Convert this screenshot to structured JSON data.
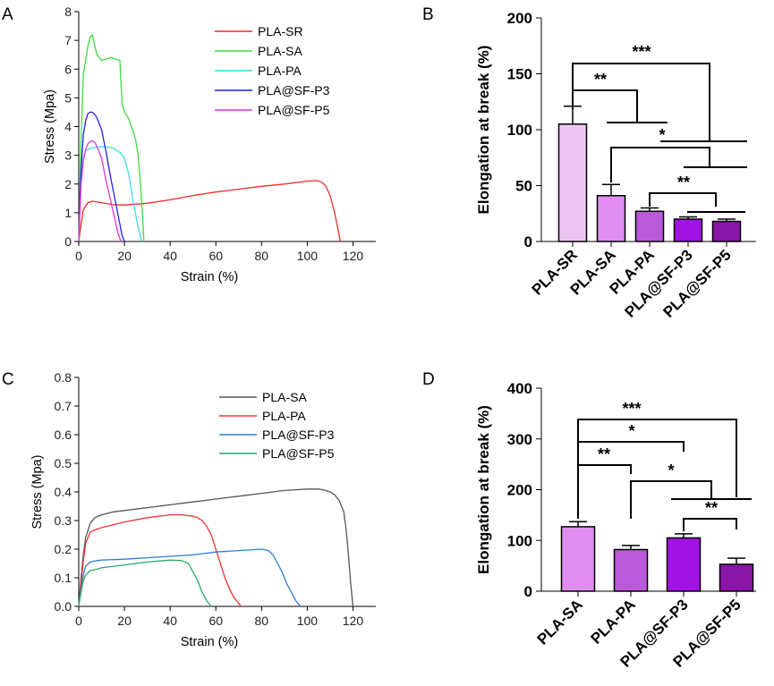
{
  "chart_data": [
    {
      "panel": "A",
      "type": "line",
      "xlabel": "Strain (%)",
      "ylabel": "Stress (Mpa)",
      "xlim": [
        0,
        130
      ],
      "ylim": [
        0,
        8
      ],
      "xticks": [
        0,
        20,
        40,
        60,
        80,
        100,
        120
      ],
      "yticks": [
        0,
        1,
        2,
        3,
        4,
        5,
        6,
        7,
        8
      ],
      "legend_position": "top-right",
      "series": [
        {
          "name": "PLA-SR",
          "color": "#ee2a2a",
          "x": [
            0,
            1,
            2,
            4,
            6,
            10,
            15,
            20,
            30,
            40,
            50,
            60,
            70,
            80,
            90,
            100,
            104,
            106,
            108,
            110,
            112,
            113,
            114,
            114.5
          ],
          "y": [
            0,
            0.6,
            1.1,
            1.35,
            1.4,
            1.35,
            1.28,
            1.27,
            1.33,
            1.45,
            1.6,
            1.72,
            1.82,
            1.92,
            2.0,
            2.1,
            2.12,
            2.08,
            1.95,
            1.6,
            1.0,
            0.6,
            0.2,
            0
          ]
        },
        {
          "name": "PLA-SA",
          "color": "#3ddc3d",
          "x": [
            0,
            1,
            2,
            3,
            4,
            5,
            6,
            7,
            8,
            9,
            10,
            12,
            14,
            16,
            18,
            18.5,
            19,
            20,
            21,
            22,
            23,
            24,
            25,
            26,
            27,
            28,
            28.5
          ],
          "y": [
            0,
            3.5,
            5.8,
            6.3,
            6.8,
            7.1,
            7.2,
            6.8,
            6.5,
            6.4,
            6.3,
            6.35,
            6.4,
            6.35,
            6.3,
            5.5,
            4.8,
            4.5,
            4.4,
            4.25,
            4.0,
            3.8,
            3.5,
            3.0,
            2.0,
            0.8,
            0
          ]
        },
        {
          "name": "PLA-PA",
          "color": "#38e0e0",
          "x": [
            0,
            1,
            2,
            3,
            5,
            8,
            10,
            12,
            15,
            18,
            20,
            22,
            23,
            24,
            25,
            26,
            27,
            27.5
          ],
          "y": [
            0,
            2.2,
            2.9,
            3.15,
            3.25,
            3.28,
            3.3,
            3.3,
            3.25,
            3.1,
            2.9,
            2.3,
            1.8,
            1.3,
            0.9,
            0.5,
            0.15,
            0
          ]
        },
        {
          "name": "PLA@SF-P3",
          "color": "#2222ee",
          "x": [
            0,
            1,
            2,
            3,
            4,
            5,
            6,
            7,
            8,
            10,
            12,
            14,
            16,
            18,
            19,
            20
          ],
          "y": [
            0,
            2.5,
            3.7,
            4.2,
            4.45,
            4.5,
            4.5,
            4.42,
            4.3,
            3.9,
            3.1,
            2.2,
            1.4,
            0.6,
            0.2,
            0
          ]
        },
        {
          "name": "PLA@SF-P5",
          "color": "#e233d6",
          "x": [
            0,
            1,
            2,
            3,
            4,
            5,
            6,
            7,
            8,
            10,
            12,
            14,
            16,
            17,
            18,
            18.5
          ],
          "y": [
            0,
            2.0,
            2.8,
            3.2,
            3.4,
            3.48,
            3.5,
            3.45,
            3.3,
            2.9,
            2.1,
            1.4,
            0.7,
            0.35,
            0.1,
            0
          ]
        }
      ]
    },
    {
      "panel": "B",
      "type": "bar",
      "ylabel": "Elongation at break (%)",
      "ylim": [
        0,
        200
      ],
      "yticks": [
        0,
        50,
        100,
        150,
        200
      ],
      "categories": [
        "PLA-SR",
        "PLA-SA",
        "PLA-PA",
        "PLA@SF-P3",
        "PLA@SF-P5"
      ],
      "values": [
        105,
        41,
        27,
        20,
        18
      ],
      "errors": [
        16,
        10,
        3,
        2,
        2
      ],
      "colors": [
        "#ecc6f3",
        "#df8ef0",
        "#b95ad8",
        "#a113e2",
        "#8a16a8"
      ],
      "significance": [
        {
          "label": "***"
        },
        {
          "label": "**"
        },
        {
          "label": "*"
        },
        {
          "label": "**"
        }
      ]
    },
    {
      "panel": "C",
      "type": "line",
      "xlabel": "Strain (%)",
      "ylabel": "Stress (Mpa)",
      "xlim": [
        0,
        130
      ],
      "ylim": [
        0,
        0.8
      ],
      "xticks": [
        0,
        20,
        40,
        60,
        80,
        100,
        120
      ],
      "yticks": [
        "0.0",
        "0.1",
        "0.2",
        "0.3",
        "0.4",
        "0.5",
        "0.6",
        "0.7",
        "0.8"
      ],
      "legend_position": "top-right",
      "series": [
        {
          "name": "PLA-SA",
          "color": "#555555",
          "x": [
            0,
            1,
            2,
            3,
            5,
            7,
            10,
            15,
            20,
            30,
            40,
            50,
            60,
            70,
            80,
            90,
            100,
            105,
            108,
            110,
            112,
            114,
            116,
            117,
            118,
            119,
            120
          ],
          "y": [
            0,
            0.1,
            0.18,
            0.24,
            0.29,
            0.31,
            0.32,
            0.33,
            0.335,
            0.345,
            0.355,
            0.365,
            0.375,
            0.385,
            0.395,
            0.405,
            0.41,
            0.41,
            0.405,
            0.4,
            0.39,
            0.37,
            0.33,
            0.27,
            0.18,
            0.08,
            0
          ]
        },
        {
          "name": "PLA-PA",
          "color": "#ee3333",
          "x": [
            0,
            1,
            2,
            3,
            5,
            8,
            10,
            15,
            20,
            30,
            40,
            45,
            50,
            52,
            54,
            56,
            58,
            60,
            62,
            64,
            66,
            68,
            70,
            71
          ],
          "y": [
            0,
            0.08,
            0.16,
            0.22,
            0.26,
            0.27,
            0.275,
            0.285,
            0.295,
            0.31,
            0.32,
            0.32,
            0.315,
            0.31,
            0.3,
            0.28,
            0.25,
            0.2,
            0.15,
            0.1,
            0.06,
            0.03,
            0.01,
            0
          ]
        },
        {
          "name": "PLA@SF-P3",
          "color": "#2a7fd4",
          "x": [
            0,
            1,
            2,
            3,
            5,
            8,
            10,
            20,
            30,
            40,
            50,
            60,
            70,
            80,
            83,
            85,
            87,
            89,
            91,
            93,
            95,
            97
          ],
          "y": [
            0,
            0.06,
            0.11,
            0.14,
            0.155,
            0.16,
            0.162,
            0.165,
            0.17,
            0.175,
            0.18,
            0.19,
            0.195,
            0.2,
            0.195,
            0.18,
            0.15,
            0.12,
            0.08,
            0.05,
            0.02,
            0
          ]
        },
        {
          "name": "PLA@SF-P5",
          "color": "#2aa86a",
          "x": [
            0,
            1,
            2,
            3,
            5,
            8,
            10,
            20,
            30,
            40,
            45,
            48,
            50,
            52,
            54,
            56,
            58
          ],
          "y": [
            0,
            0.05,
            0.09,
            0.11,
            0.125,
            0.13,
            0.135,
            0.145,
            0.155,
            0.162,
            0.16,
            0.15,
            0.12,
            0.09,
            0.05,
            0.02,
            0
          ]
        }
      ]
    },
    {
      "panel": "D",
      "type": "bar",
      "ylabel": "Elongation at break (%)",
      "ylim": [
        0,
        400
      ],
      "yticks": [
        0,
        100,
        200,
        300,
        400
      ],
      "categories": [
        "PLA-SA",
        "PLA-PA",
        "PLA@SF-P3",
        "PLA@SF-P5"
      ],
      "values": [
        127,
        82,
        105,
        53
      ],
      "errors": [
        10,
        8,
        8,
        12
      ],
      "colors": [
        "#df8ef0",
        "#b95ad8",
        "#a113e2",
        "#8a16a8"
      ],
      "significance": [
        {
          "label": "***"
        },
        {
          "label": "*"
        },
        {
          "label": "**"
        },
        {
          "label": "*"
        },
        {
          "label": "**"
        }
      ]
    }
  ]
}
